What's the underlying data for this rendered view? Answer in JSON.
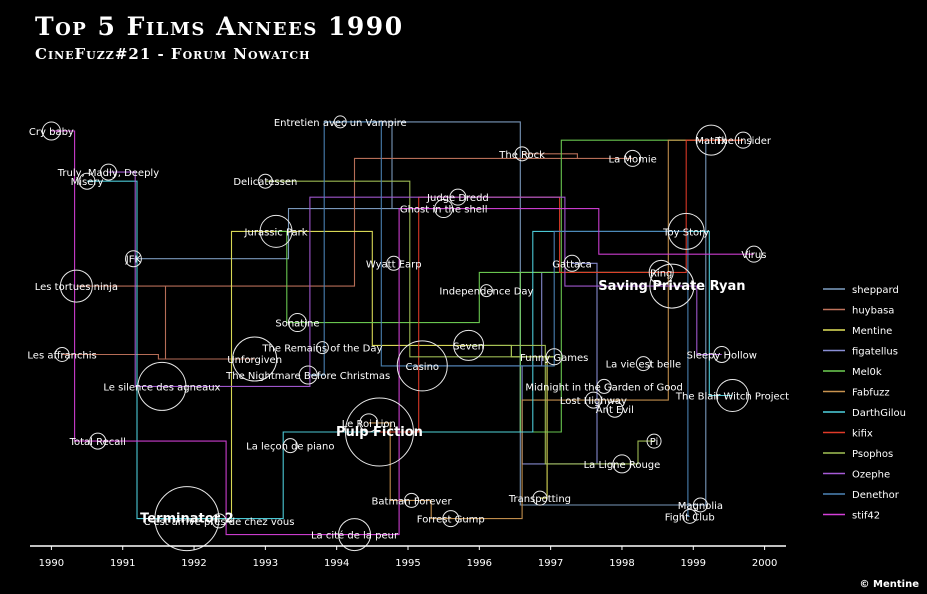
{
  "title": "Top 5 Films Annees 1990",
  "subtitle": "CineFuzz#21 - Forum Nowatch",
  "copyright": "© Mentine",
  "chart_data": {
    "type": "line",
    "xlim": [
      1989.7,
      2000.3
    ],
    "x_ticks": [
      "1990",
      "1991",
      "1992",
      "1993",
      "1994",
      "1995",
      "1996",
      "1997",
      "1998",
      "1999",
      "2000"
    ],
    "grid": false,
    "legend_position": "right",
    "colors": {
      "sheppard": "#7f9fc4",
      "huybasa": "#c0735c",
      "Mentine": "#e3e35a",
      "figatellus": "#8a8fd6",
      "Mel0k": "#6fd053",
      "Fabfuzz": "#c9934f",
      "DarthGilou": "#4fd3e0",
      "kifix": "#e03a28",
      "Psophos": "#a3c256",
      "Ozephe": "#a65bd6",
      "Denethor": "#4d86b8",
      "stif42": "#d43fd8"
    },
    "series": [
      {
        "name": "sheppard",
        "films": [
          "JFK",
          "Ghost in the shell",
          "Entretien avec un Vampire",
          "Magnolia",
          "Matrix"
        ]
      },
      {
        "name": "huybasa",
        "films": [
          "Les affranchis",
          "Unforgiven",
          "Les tortues ninja",
          "La Momie",
          "The Rock"
        ]
      },
      {
        "name": "Mentine",
        "films": [
          "Terminator 2",
          "Jurassic Park",
          "Seven",
          "Funny Games",
          "Transpotting"
        ]
      },
      {
        "name": "figatellus",
        "films": [
          "Pulp Fiction",
          "Ring",
          "Casino",
          "La Ligne Rouge",
          "Gattaca"
        ]
      },
      {
        "name": "Mel0k",
        "films": [
          "Jurassic Park",
          "Sonatine",
          "Ring",
          "Pulp Fiction",
          "The Insider"
        ]
      },
      {
        "name": "Fabfuzz",
        "films": [
          "Le Roi Lion",
          "Batman Forever",
          "Forrest Gump",
          "Lost Highway",
          "The Insider"
        ]
      },
      {
        "name": "DarthGilou",
        "films": [
          "Misery",
          "Terminator 2",
          "Pulp Fiction",
          "Toy Story",
          "The Blair Witch Project"
        ]
      },
      {
        "name": "kifix",
        "films": [
          "Pulp Fiction",
          "Judge Dredd",
          "Ring",
          "Matrix",
          "The Insider"
        ]
      },
      {
        "name": "Psophos",
        "films": [
          "Delicatessen",
          "Funny Games",
          "Seven",
          "La Ligne Rouge",
          "Pi"
        ]
      },
      {
        "name": "Ozephe",
        "films": [
          "Truly, Madly, Deeply",
          "Le silence des agneaux",
          "Judge Dredd",
          "Saving Private Ryan",
          "Sleepy Hollow"
        ]
      },
      {
        "name": "Denethor",
        "films": [
          "The Nightmare Before Christmas",
          "Entretien avec un Vampire",
          "Casino",
          "Toy Story",
          "Fight Club"
        ]
      },
      {
        "name": "stif42",
        "films": [
          "Cry baby",
          "Total Recall",
          "La cité de la peur",
          "Ghost in the shell",
          "Virus"
        ]
      }
    ],
    "films": [
      {
        "name": "Cry baby",
        "x": 1990,
        "y": 91,
        "r": 9,
        "bold": false
      },
      {
        "name": "Truly, Madly, Deeply",
        "x": 1990.8,
        "y": 82,
        "r": 8,
        "bold": false
      },
      {
        "name": "Misery",
        "x": 1990.5,
        "y": 80,
        "r": 8,
        "bold": false
      },
      {
        "name": "JFK",
        "x": 1991.15,
        "y": 63,
        "r": 8,
        "bold": false
      },
      {
        "name": "Les tortues ninja",
        "x": 1990.35,
        "y": 57,
        "r": 16,
        "bold": false
      },
      {
        "name": "Les affranchis",
        "x": 1990.15,
        "y": 42,
        "r": 7,
        "bold": false
      },
      {
        "name": "Le silence des agneaux",
        "x": 1991.55,
        "y": 35,
        "r": 24,
        "bold": false
      },
      {
        "name": "Total Recall",
        "x": 1990.65,
        "y": 23,
        "r": 8,
        "bold": false
      },
      {
        "name": "Terminator 2",
        "x": 1991.9,
        "y": 6,
        "r": 32,
        "bold": true
      },
      {
        "name": "C'est arrive pres de chez vous",
        "x": 1992.35,
        "y": 5.5,
        "r": 7,
        "bold": false
      },
      {
        "name": "Delicatessen",
        "x": 1993.0,
        "y": 80,
        "r": 7,
        "bold": false
      },
      {
        "name": "Jurassic Park",
        "x": 1993.15,
        "y": 69,
        "r": 16,
        "bold": false
      },
      {
        "name": "Unforgiven",
        "x": 1992.85,
        "y": 41,
        "r": 22,
        "bold": false
      },
      {
        "name": "The Nightmare Before Christmas",
        "x": 1993.6,
        "y": 37.5,
        "r": 9,
        "bold": false
      },
      {
        "name": "The Remains of the Day",
        "x": 1993.8,
        "y": 43.5,
        "r": 6,
        "bold": false
      },
      {
        "name": "Sonatine",
        "x": 1993.45,
        "y": 49,
        "r": 9,
        "bold": false
      },
      {
        "name": "La leçon de piano",
        "x": 1993.35,
        "y": 22,
        "r": 7,
        "bold": false
      },
      {
        "name": "Entretien avec un Vampire",
        "x": 1994.05,
        "y": 93,
        "r": 6,
        "bold": false
      },
      {
        "name": "Wyatt Earp",
        "x": 1994.8,
        "y": 62,
        "r": 7,
        "bold": false
      },
      {
        "name": "Le Roi Lion",
        "x": 1994.45,
        "y": 27,
        "r": 9,
        "bold": false
      },
      {
        "name": "Pulp Fiction",
        "x": 1994.6,
        "y": 25,
        "r": 34,
        "bold": true
      },
      {
        "name": "La cité de la peur",
        "x": 1994.25,
        "y": 2.5,
        "r": 16,
        "bold": false
      },
      {
        "name": "Casino",
        "x": 1995.2,
        "y": 39.5,
        "r": 25,
        "bold": false
      },
      {
        "name": "Batman Forever",
        "x": 1995.05,
        "y": 10,
        "r": 7,
        "bold": false
      },
      {
        "name": "Forrest Gump",
        "x": 1995.6,
        "y": 6,
        "r": 8,
        "bold": false
      },
      {
        "name": "Seven",
        "x": 1995.85,
        "y": 44,
        "r": 15,
        "bold": false
      },
      {
        "name": "Judge Dredd",
        "x": 1995.7,
        "y": 76.5,
        "r": 8,
        "bold": false
      },
      {
        "name": "Ghost in the shell",
        "x": 1995.5,
        "y": 74,
        "r": 9,
        "bold": false
      },
      {
        "name": "Independence Day",
        "x": 1996.1,
        "y": 56,
        "r": 6,
        "bold": false
      },
      {
        "name": "The Rock",
        "x": 1996.6,
        "y": 86,
        "r": 7,
        "bold": false
      },
      {
        "name": "Gattaca",
        "x": 1997.3,
        "y": 62,
        "r": 8,
        "bold": false
      },
      {
        "name": "Funny Games",
        "x": 1997.05,
        "y": 41.5,
        "r": 8,
        "bold": false
      },
      {
        "name": "Transpotting",
        "x": 1996.85,
        "y": 10.5,
        "r": 7,
        "bold": false
      },
      {
        "name": "Midnight in the Garden of Good",
        "x": 1997.75,
        "y": 35,
        "r": 7,
        "bold": false
      },
      {
        "name": "Lost Highway",
        "x": 1997.6,
        "y": 32,
        "r": 8,
        "bold": false
      },
      {
        "name": "Ant Evil",
        "x": 1997.9,
        "y": 30,
        "r": 8,
        "bold": false
      },
      {
        "name": "La vie est belle",
        "x": 1998.3,
        "y": 40,
        "r": 7,
        "bold": false
      },
      {
        "name": "La Momie",
        "x": 1998.15,
        "y": 85,
        "r": 8,
        "bold": false
      },
      {
        "name": "La Ligne Rouge",
        "x": 1998.0,
        "y": 18,
        "r": 9,
        "bold": false
      },
      {
        "name": "Pi",
        "x": 1998.45,
        "y": 23,
        "r": 7,
        "bold": false
      },
      {
        "name": "Ring",
        "x": 1998.55,
        "y": 60,
        "r": 12,
        "bold": false
      },
      {
        "name": "Saving Private Ryan",
        "x": 1998.7,
        "y": 57,
        "r": 22,
        "bold": true
      },
      {
        "name": "Toy Story",
        "x": 1998.9,
        "y": 69,
        "r": 18,
        "bold": false
      },
      {
        "name": "Matrix",
        "x": 1999.25,
        "y": 89,
        "r": 15,
        "bold": false
      },
      {
        "name": "The Insider",
        "x": 1999.7,
        "y": 89,
        "r": 8,
        "bold": false
      },
      {
        "name": "Sleepy Hollow",
        "x": 1999.4,
        "y": 42,
        "r": 8,
        "bold": false
      },
      {
        "name": "The Blair Witch Project",
        "x": 1999.55,
        "y": 33,
        "r": 16,
        "bold": false
      },
      {
        "name": "Virus",
        "x": 1999.85,
        "y": 64,
        "r": 8,
        "bold": false
      },
      {
        "name": "Magnolia",
        "x": 1999.1,
        "y": 9,
        "r": 7,
        "bold": false
      },
      {
        "name": "Fight Club",
        "x": 1998.95,
        "y": 6.5,
        "r": 7,
        "bold": false
      }
    ]
  }
}
